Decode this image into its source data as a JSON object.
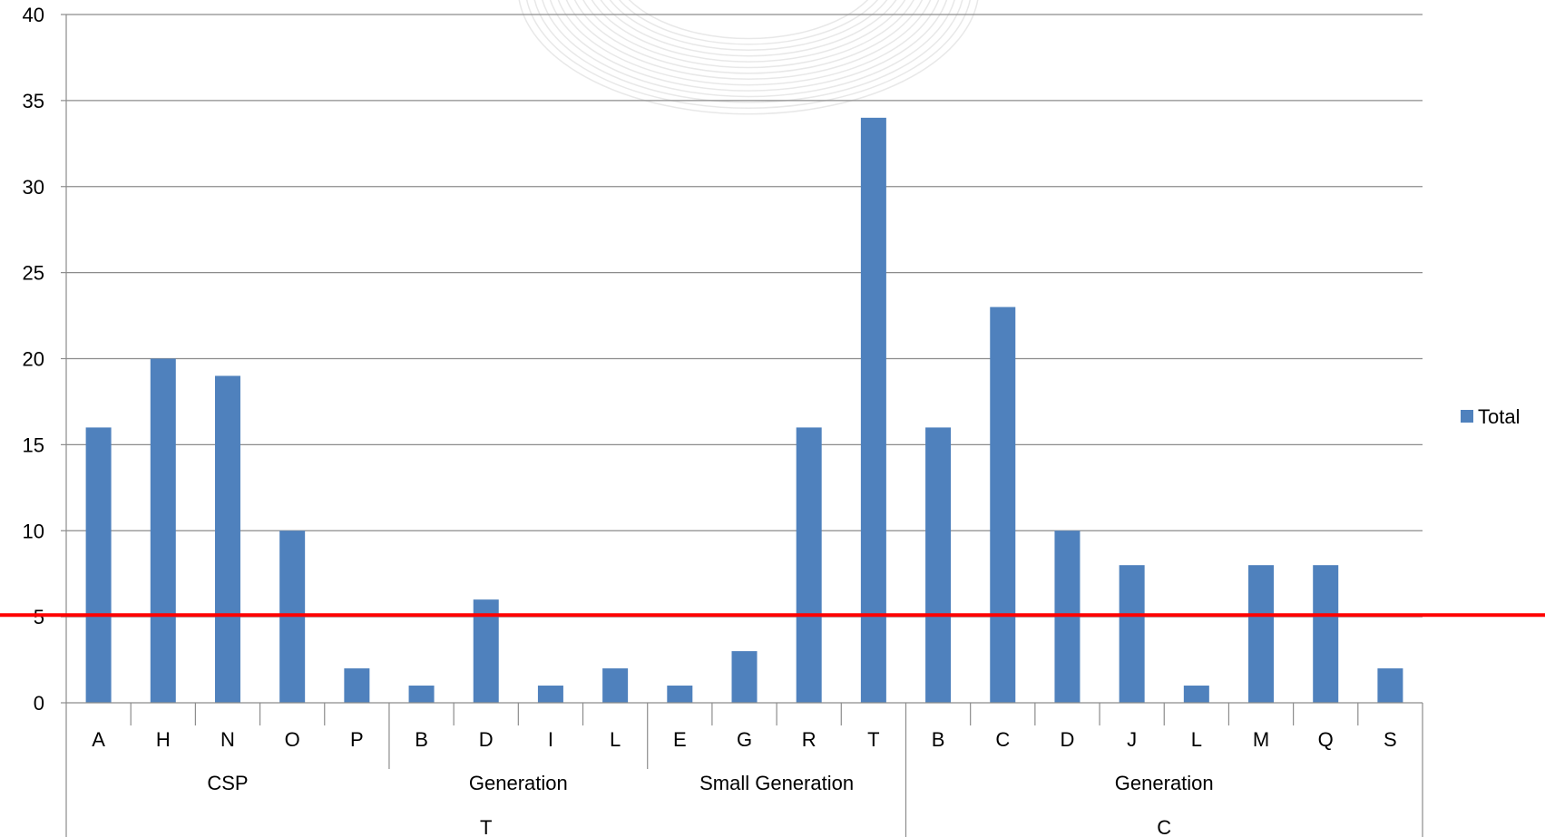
{
  "chart_data": {
    "type": "bar",
    "title": "",
    "xlabel": "",
    "ylabel": "",
    "ylim": [
      0,
      40
    ],
    "yticks": [
      "0",
      "5",
      "10",
      "15",
      "20",
      "25",
      "30",
      "35",
      "40"
    ],
    "grid": true,
    "legend": {
      "placement": "right",
      "entries": [
        "Total"
      ]
    },
    "categories": [
      "A",
      "H",
      "N",
      "O",
      "P",
      "B",
      "D",
      "I",
      "L",
      "E",
      "G",
      "R",
      "T",
      "B",
      "C",
      "D",
      "J",
      "L",
      "M",
      "Q",
      "S"
    ],
    "groups_level2": [
      {
        "label": "CSP",
        "span": 5
      },
      {
        "label": "Generation",
        "span": 4
      },
      {
        "label": "Small Generation",
        "span": 4
      },
      {
        "label": "Generation",
        "span": 8
      }
    ],
    "groups_level1": [
      {
        "label": "T",
        "span": 13
      },
      {
        "label": "C",
        "span": 8
      }
    ],
    "series": [
      {
        "name": "Total",
        "color": "#4F81BD",
        "values": [
          16,
          20,
          19,
          10,
          2,
          1,
          6,
          1,
          2,
          1,
          3,
          16,
          34,
          16,
          23,
          10,
          8,
          1,
          8,
          8,
          2
        ]
      }
    ],
    "reference_line": {
      "value": 5.1,
      "color": "#FF0000"
    },
    "colors": {
      "bar": "#4F81BD",
      "grid": "#8C8C8C",
      "axis": "#8C8C8C",
      "reference": "#FF0000",
      "watermark": "#D9D9D9"
    }
  }
}
